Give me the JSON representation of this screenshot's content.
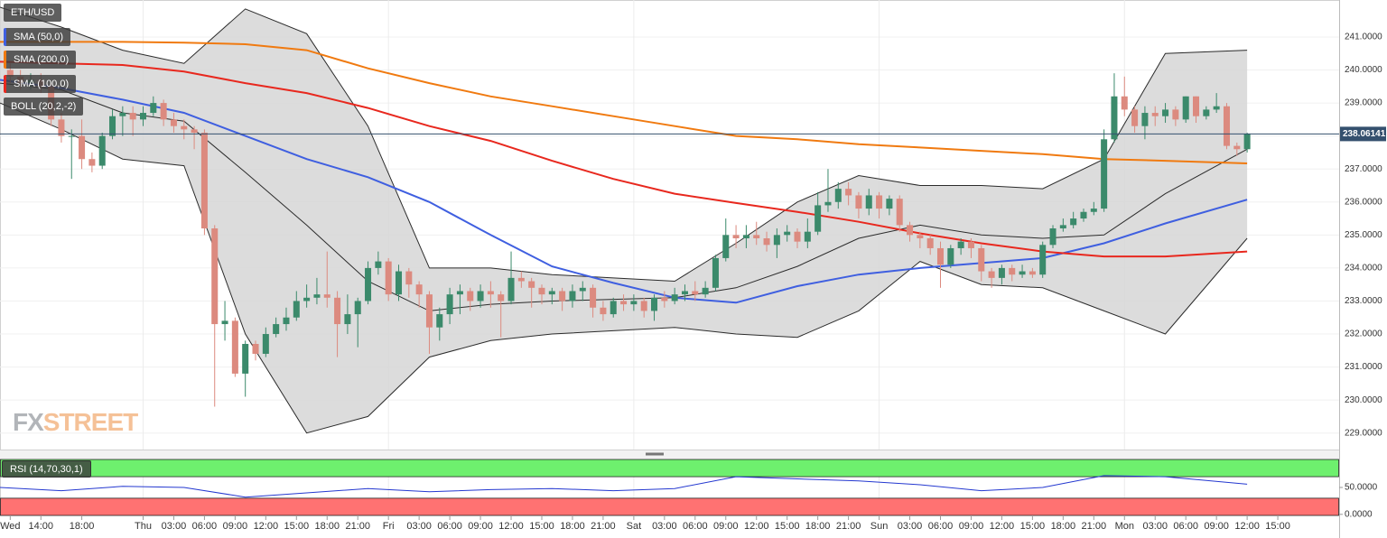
{
  "chart_data": {
    "type": "candlestick",
    "title": "ETH/USD",
    "xlim": [
      -1,
      130
    ],
    "ylim": [
      228.5,
      242.12
    ],
    "yticks": [
      {
        "value": 229,
        "label": "229.0000"
      },
      {
        "value": 230,
        "label": "230.0000"
      },
      {
        "value": 231,
        "label": "231.0000"
      },
      {
        "value": 232,
        "label": "232.0000"
      },
      {
        "value": 233,
        "label": "233.0000"
      },
      {
        "value": 234,
        "label": "234.0000"
      },
      {
        "value": 235,
        "label": "235.0000"
      },
      {
        "value": 236,
        "label": "236.0000"
      },
      {
        "value": 237,
        "label": "237.0000"
      },
      {
        "value": 238,
        "label": "238.0000"
      },
      {
        "value": 239,
        "label": "239.0000"
      },
      {
        "value": 240,
        "label": "240.0000"
      },
      {
        "value": 241,
        "label": "241.0000"
      }
    ],
    "xticks": [
      {
        "value": 0,
        "label": "Wed"
      },
      {
        "value": 3,
        "label": "14:00"
      },
      {
        "value": 7,
        "label": "18:00"
      },
      {
        "value": 13,
        "label": "Thu"
      },
      {
        "value": 16,
        "label": "03:00"
      },
      {
        "value": 19,
        "label": "06:00"
      },
      {
        "value": 22,
        "label": "09:00"
      },
      {
        "value": 25,
        "label": "12:00"
      },
      {
        "value": 28,
        "label": "15:00"
      },
      {
        "value": 31,
        "label": "18:00"
      },
      {
        "value": 34,
        "label": "21:00"
      },
      {
        "value": 37,
        "label": "Fri"
      },
      {
        "value": 40,
        "label": "03:00"
      },
      {
        "value": 43,
        "label": "06:00"
      },
      {
        "value": 46,
        "label": "09:00"
      },
      {
        "value": 49,
        "label": "12:00"
      },
      {
        "value": 52,
        "label": "15:00"
      },
      {
        "value": 55,
        "label": "18:00"
      },
      {
        "value": 58,
        "label": "21:00"
      },
      {
        "value": 61,
        "label": "Sat"
      },
      {
        "value": 64,
        "label": "03:00"
      },
      {
        "value": 67,
        "label": "06:00"
      },
      {
        "value": 70,
        "label": "09:00"
      },
      {
        "value": 73,
        "label": "12:00"
      },
      {
        "value": 76,
        "label": "15:00"
      },
      {
        "value": 79,
        "label": "18:00"
      },
      {
        "value": 82,
        "label": "21:00"
      },
      {
        "value": 85,
        "label": "Sun"
      },
      {
        "value": 88,
        "label": "03:00"
      },
      {
        "value": 91,
        "label": "06:00"
      },
      {
        "value": 94,
        "label": "09:00"
      },
      {
        "value": 97,
        "label": "12:00"
      },
      {
        "value": 100,
        "label": "15:00"
      },
      {
        "value": 103,
        "label": "18:00"
      },
      {
        "value": 106,
        "label": "21:00"
      },
      {
        "value": 109,
        "label": "Mon"
      },
      {
        "value": 112,
        "label": "03:00"
      },
      {
        "value": 115,
        "label": "06:00"
      },
      {
        "value": 118,
        "label": "09:00"
      },
      {
        "value": 121,
        "label": "12:00"
      },
      {
        "value": 124,
        "label": "15:00"
      }
    ],
    "xgrid": [
      13,
      37,
      61,
      85,
      109
    ],
    "grid": true,
    "candles": {
      "up_color": "#3b8a6b",
      "down_color": "#dc8a7f",
      "open": [
        240.0,
        239.8,
        239.6,
        239.7,
        239.5,
        238.5,
        238.0,
        238.0,
        237.3,
        237.1,
        238.0,
        238.6,
        238.7,
        238.5,
        238.7,
        239.0,
        238.5,
        238.3,
        238.2,
        238.1,
        235.2,
        232.3,
        232.4,
        230.8,
        231.7,
        231.4,
        232.0,
        232.3,
        232.5,
        233.0,
        233.1,
        233.2,
        233.1,
        232.3,
        232.6,
        233.0,
        234.0,
        234.2,
        233.2,
        233.9,
        233.5,
        233.2,
        232.2,
        232.6,
        233.2,
        233.3,
        233.0,
        233.3,
        233.2,
        233.0,
        233.7,
        233.6,
        233.4,
        233.2,
        233.3,
        233.0,
        233.3,
        233.4,
        232.8,
        232.6,
        233.0,
        232.9,
        233.0,
        232.7,
        233.1,
        233.0,
        233.2,
        233.3,
        233.2,
        233.4,
        234.3,
        235.0,
        234.9,
        235.0,
        234.9,
        234.7,
        235.0,
        235.1,
        234.8,
        235.1,
        235.9,
        236.0,
        236.4,
        236.2,
        235.8,
        236.2,
        235.8,
        236.1,
        235.3,
        235.0,
        234.9,
        234.6,
        234.1,
        234.6,
        234.8,
        234.6,
        233.9,
        233.7,
        234.0,
        233.8,
        233.9,
        233.8,
        234.7,
        235.2,
        235.3,
        235.5,
        235.7,
        235.8,
        237.9,
        239.2,
        238.8,
        238.3,
        238.7,
        238.6,
        238.8,
        238.5,
        239.2,
        238.6,
        238.8,
        238.9,
        237.7,
        237.6
      ],
      "high": [
        240.2,
        240.0,
        239.9,
        239.9,
        239.6,
        238.7,
        238.2,
        238.5,
        237.5,
        238.1,
        238.8,
        238.9,
        238.9,
        238.9,
        239.2,
        239.1,
        238.7,
        238.5,
        238.3,
        238.2,
        235.3,
        233.0,
        232.5,
        231.8,
        231.8,
        232.2,
        232.5,
        232.8,
        233.3,
        233.5,
        233.7,
        234.5,
        233.3,
        233.2,
        233.1,
        234.2,
        234.5,
        234.3,
        234.1,
        234.0,
        233.6,
        233.3,
        232.8,
        233.4,
        233.5,
        233.4,
        233.5,
        233.6,
        233.3,
        234.5,
        233.9,
        233.7,
        233.5,
        233.4,
        233.4,
        233.5,
        233.6,
        233.5,
        233.0,
        233.1,
        233.2,
        233.2,
        233.1,
        233.2,
        233.3,
        233.4,
        233.5,
        233.6,
        233.6,
        234.4,
        235.5,
        235.3,
        235.3,
        235.4,
        235.1,
        235.2,
        235.3,
        235.2,
        235.5,
        236.3,
        237.0,
        236.6,
        236.6,
        236.3,
        236.4,
        236.3,
        236.2,
        236.2,
        235.4,
        235.1,
        235.0,
        234.8,
        234.7,
        234.9,
        234.9,
        234.7,
        234.0,
        234.1,
        234.1,
        234.1,
        234.0,
        234.8,
        235.3,
        235.5,
        235.7,
        235.8,
        236.0,
        238.2,
        239.9,
        239.8,
        238.9,
        238.9,
        238.9,
        239.0,
        238.9,
        239.2,
        239.2,
        238.9,
        239.3,
        239.0,
        237.8,
        238.1
      ],
      "low": [
        239.6,
        239.4,
        239.4,
        239.3,
        238.3,
        237.8,
        236.7,
        237.0,
        236.9,
        237.0,
        237.9,
        238.0,
        238.0,
        238.3,
        238.6,
        238.3,
        238.1,
        237.9,
        237.6,
        235.0,
        229.8,
        231.8,
        230.7,
        230.1,
        231.2,
        231.3,
        231.9,
        232.1,
        232.4,
        232.8,
        232.9,
        232.8,
        231.3,
        232.0,
        231.6,
        232.9,
        233.8,
        233.0,
        233.0,
        233.1,
        232.8,
        231.4,
        231.8,
        232.3,
        232.6,
        232.7,
        232.8,
        232.8,
        231.9,
        232.9,
        233.4,
        232.8,
        232.9,
        232.9,
        232.7,
        232.8,
        233.0,
        232.5,
        232.4,
        232.5,
        232.7,
        232.7,
        232.5,
        232.4,
        232.8,
        232.9,
        233.0,
        233.0,
        233.1,
        233.3,
        234.2,
        234.6,
        234.6,
        234.7,
        234.5,
        234.3,
        234.8,
        234.6,
        234.6,
        235.0,
        235.7,
        235.8,
        235.9,
        235.5,
        235.6,
        235.5,
        235.6,
        235.1,
        234.8,
        234.6,
        234.4,
        233.4,
        234.0,
        234.4,
        234.3,
        233.6,
        233.4,
        233.5,
        233.6,
        233.7,
        233.7,
        233.7,
        234.6,
        235.1,
        235.2,
        235.4,
        235.6,
        235.7,
        237.8,
        238.6,
        238.1,
        237.9,
        238.3,
        238.4,
        238.3,
        238.4,
        238.4,
        238.5,
        238.7,
        237.6,
        237.4,
        237.5
      ],
      "close": [
        239.8,
        239.6,
        239.7,
        239.5,
        238.5,
        238.0,
        238.0,
        237.3,
        237.1,
        238.0,
        238.6,
        238.7,
        238.5,
        238.7,
        239.0,
        238.5,
        238.3,
        238.2,
        238.1,
        235.2,
        232.3,
        232.4,
        230.8,
        231.7,
        231.4,
        232.0,
        232.3,
        232.5,
        233.0,
        233.1,
        233.2,
        233.1,
        232.3,
        232.6,
        233.0,
        234.0,
        234.2,
        233.2,
        233.9,
        233.5,
        233.2,
        232.2,
        232.6,
        233.2,
        233.3,
        233.0,
        233.3,
        233.2,
        233.0,
        233.7,
        233.6,
        233.4,
        233.2,
        233.3,
        233.0,
        233.3,
        233.4,
        232.8,
        232.6,
        233.0,
        232.9,
        233.0,
        232.7,
        233.1,
        233.0,
        233.2,
        233.3,
        233.2,
        233.4,
        234.3,
        235.0,
        234.9,
        235.0,
        234.9,
        234.7,
        235.0,
        235.1,
        234.8,
        235.1,
        235.9,
        236.0,
        236.4,
        236.2,
        235.8,
        236.2,
        235.8,
        236.1,
        235.3,
        235.0,
        234.9,
        234.6,
        234.1,
        234.6,
        234.8,
        234.6,
        233.9,
        233.7,
        234.0,
        233.8,
        233.9,
        233.8,
        234.7,
        235.2,
        235.3,
        235.5,
        235.7,
        235.8,
        237.9,
        239.2,
        238.8,
        238.3,
        238.7,
        238.6,
        238.8,
        238.5,
        239.2,
        238.6,
        238.8,
        238.9,
        237.7,
        237.6,
        238.06141
      ],
      "last_color": "#34506e"
    },
    "bollinger": {
      "name": "BOLL (20,2,-2)",
      "color": "#2b2b2b",
      "fill": "#d6d6d6",
      "x": [
        -1,
        5,
        11,
        17,
        23,
        29,
        35,
        41,
        47,
        53,
        59,
        65,
        71,
        77,
        83,
        89,
        95,
        101,
        107,
        113,
        121
      ],
      "upper": [
        241.9,
        241.3,
        240.6,
        240.2,
        241.85,
        241.1,
        238.3,
        234.0,
        234.0,
        233.8,
        233.7,
        233.6,
        234.75,
        236.0,
        236.8,
        236.5,
        236.5,
        236.4,
        237.3,
        240.5,
        240.6
      ],
      "middle": [
        239.6,
        239.4,
        238.7,
        238.45,
        236.9,
        235.3,
        233.6,
        232.7,
        232.9,
        233.0,
        233.05,
        233.1,
        233.4,
        234.05,
        234.9,
        235.3,
        235.0,
        234.9,
        235.0,
        236.25,
        237.6
      ],
      "lower": [
        239.0,
        238.2,
        237.3,
        237.1,
        232.0,
        229.0,
        229.5,
        231.3,
        231.8,
        232.0,
        232.1,
        232.2,
        232.0,
        231.9,
        232.7,
        234.2,
        233.5,
        233.4,
        232.7,
        232.0,
        234.9
      ]
    },
    "series": [
      {
        "name": "SMA (50,0)",
        "color": "#3f5fe0",
        "x": [
          -1,
          5,
          11,
          17,
          23,
          29,
          35,
          41,
          47,
          53,
          59,
          65,
          71,
          77,
          83,
          89,
          95,
          101,
          107,
          113,
          121
        ],
        "values": [
          239.7,
          239.45,
          239.1,
          238.7,
          238.0,
          237.3,
          236.75,
          236.0,
          235.0,
          234.05,
          233.55,
          233.1,
          232.95,
          233.45,
          233.8,
          234.0,
          234.15,
          234.3,
          234.75,
          235.35,
          236.07
        ]
      },
      {
        "name": "SMA (200,0)",
        "color": "#f07a10",
        "x": [
          -1,
          5,
          11,
          17,
          23,
          29,
          35,
          41,
          47,
          53,
          59,
          65,
          71,
          77,
          83,
          89,
          95,
          101,
          107,
          113,
          121
        ],
        "values": [
          240.85,
          240.85,
          240.85,
          240.83,
          240.78,
          240.6,
          240.05,
          239.6,
          239.2,
          238.9,
          238.6,
          238.3,
          238.0,
          237.9,
          237.75,
          237.65,
          237.55,
          237.45,
          237.3,
          237.25,
          237.17
        ]
      },
      {
        "name": "SMA (100,0)",
        "color": "#e8281e",
        "x": [
          -1,
          5,
          11,
          17,
          23,
          29,
          35,
          41,
          47,
          53,
          59,
          65,
          71,
          77,
          83,
          89,
          95,
          101,
          107,
          113,
          121
        ],
        "values": [
          240.25,
          240.2,
          240.15,
          239.95,
          239.6,
          239.3,
          238.85,
          238.3,
          237.85,
          237.25,
          236.7,
          236.25,
          235.97,
          235.7,
          235.4,
          235.05,
          234.75,
          234.5,
          234.35,
          234.35,
          234.5
        ]
      }
    ],
    "rsi": {
      "name": "RSI (14,70,30,1)",
      "color": "#2438d0",
      "ylim": [
        -2,
        102
      ],
      "yticks": [
        {
          "value": 0,
          "label": "0.0000"
        },
        {
          "value": 50,
          "label": "50.0000"
        }
      ],
      "overbought": 70,
      "oversold": 30,
      "overbought_color": "#6ef06e",
      "oversold_color": "#ff7272",
      "x": [
        -1,
        5,
        11,
        17,
        23,
        29,
        35,
        41,
        47,
        53,
        59,
        65,
        71,
        77,
        83,
        89,
        95,
        101,
        107,
        113,
        121
      ],
      "values": [
        50,
        44,
        52,
        50,
        32,
        40,
        48,
        42,
        46,
        48,
        44,
        48,
        70,
        66,
        62,
        55,
        44,
        50,
        72,
        70,
        56
      ]
    },
    "watermark": {
      "left": "FX",
      "right": "STREET"
    }
  }
}
